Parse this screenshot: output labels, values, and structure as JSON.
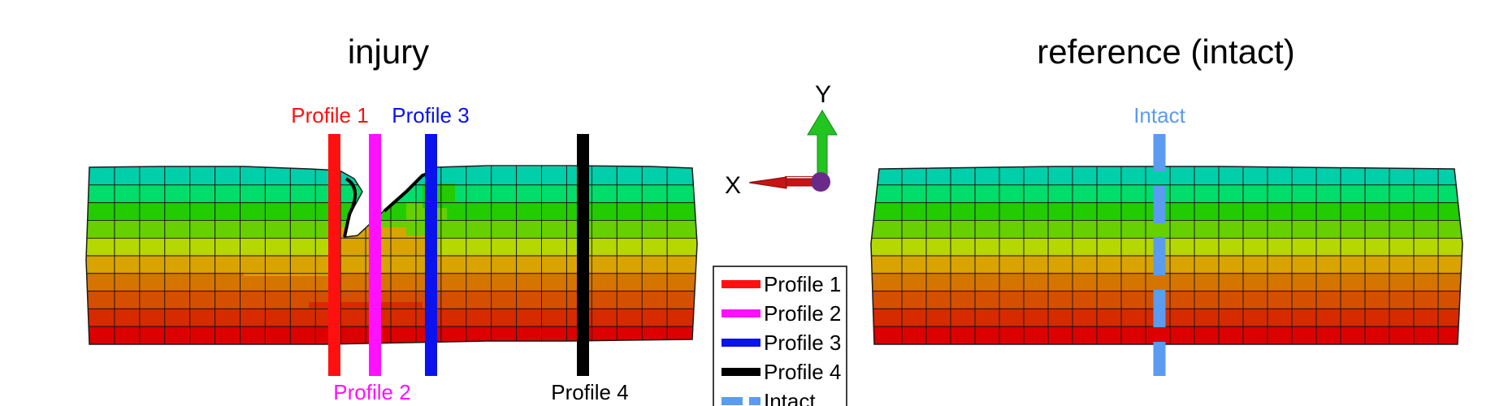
{
  "titles": {
    "injury": "injury",
    "reference": "reference (intact)"
  },
  "labels": {
    "profile1": "Profile 1",
    "profile2": "Profile 2",
    "profile3": "Profile 3",
    "profile4": "Profile 4",
    "intact": "Intact"
  },
  "axes": {
    "x": "X",
    "y": "Y"
  },
  "legend": {
    "items": [
      {
        "label": "Profile 1",
        "color": "#ff1010",
        "style": "solid"
      },
      {
        "label": "Profile 2",
        "color": "#ff10ff",
        "style": "solid"
      },
      {
        "label": "Profile 3",
        "color": "#0a12ee",
        "style": "solid"
      },
      {
        "label": "Profile 4",
        "color": "#000000",
        "style": "solid"
      },
      {
        "label": "Intact",
        "color": "#5b9bf0",
        "style": "dashed"
      }
    ]
  },
  "colors": {
    "band_top_to_bottom": [
      "#00cfa9",
      "#00dd6a",
      "#22cc00",
      "#66d000",
      "#b5d800",
      "#d9a400",
      "#d67400",
      "#d45000",
      "#d72a00",
      "#dd0000"
    ],
    "profile1": "#ff1010",
    "profile2": "#ff10ff",
    "profile3": "#0a12ee",
    "profile4": "#000000",
    "intact": "#5b9bf0",
    "arrow_x": "#c81414",
    "arrow_y": "#22c422",
    "origin": "#6a2a8a"
  }
}
